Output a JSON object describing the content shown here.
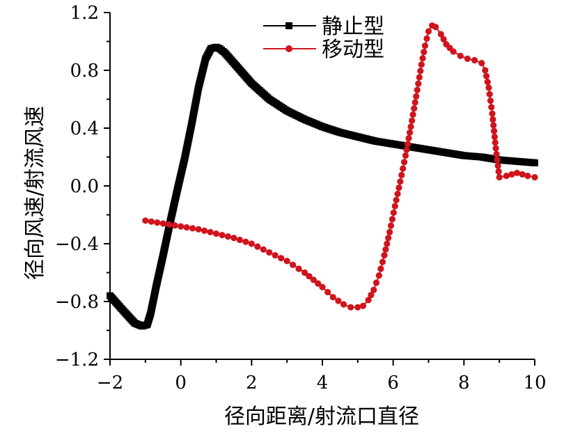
{
  "chart_data": {
    "type": "line",
    "xlabel": "径向距离/射流口直径",
    "ylabel": "径向风速/射流风速",
    "xlim": [
      -2,
      10
    ],
    "ylim": [
      -1.2,
      1.2
    ],
    "xticks": [
      -2,
      0,
      2,
      4,
      6,
      8,
      10
    ],
    "yticks": [
      -1.2,
      -0.8,
      -0.4,
      0.0,
      0.4,
      0.8,
      1.2
    ],
    "xtick_labels": [
      "−2",
      "0",
      "2",
      "4",
      "6",
      "8",
      "10"
    ],
    "ytick_labels": [
      "−1.2",
      "−0.8",
      "−0.4",
      "0.0",
      "0.4",
      "0.8",
      "1.2"
    ],
    "grid": false,
    "legend_position": "top-center",
    "series": [
      {
        "name": "静止型",
        "color": "#000000",
        "marker": "square",
        "x": [
          -2.0,
          -1.6,
          -1.3,
          -1.1,
          -0.95,
          -0.85,
          -0.7,
          -0.5,
          -0.3,
          -0.1,
          0.1,
          0.3,
          0.5,
          0.7,
          0.85,
          1.0,
          1.1,
          1.25,
          1.5,
          2.0,
          2.5,
          3.0,
          3.5,
          4.0,
          4.5,
          5.0,
          5.5,
          6.0,
          6.5,
          7.0,
          7.5,
          8.0,
          8.5,
          9.0,
          9.5,
          10.0
        ],
        "y": [
          -0.76,
          -0.87,
          -0.95,
          -0.97,
          -0.96,
          -0.88,
          -0.7,
          -0.48,
          -0.25,
          -0.03,
          0.18,
          0.42,
          0.68,
          0.88,
          0.95,
          0.96,
          0.95,
          0.92,
          0.85,
          0.71,
          0.6,
          0.52,
          0.46,
          0.41,
          0.37,
          0.34,
          0.31,
          0.29,
          0.27,
          0.25,
          0.23,
          0.21,
          0.2,
          0.18,
          0.17,
          0.16
        ]
      },
      {
        "name": "移动型",
        "color": "#d0141c",
        "marker": "circle",
        "x": [
          -1.0,
          -0.5,
          0.0,
          0.5,
          1.0,
          1.5,
          2.0,
          2.5,
          3.0,
          3.5,
          4.0,
          4.3,
          4.6,
          4.8,
          5.0,
          5.15,
          5.3,
          5.45,
          5.6,
          5.75,
          5.9,
          6.05,
          6.2,
          6.35,
          6.5,
          6.65,
          6.8,
          6.9,
          7.0,
          7.1,
          7.2,
          7.35,
          7.5,
          7.7,
          7.9,
          8.1,
          8.3,
          8.5,
          8.6,
          8.7,
          8.8,
          8.9,
          9.0,
          9.2,
          9.5,
          9.8,
          10.0
        ],
        "y": [
          -0.24,
          -0.26,
          -0.28,
          -0.3,
          -0.33,
          -0.36,
          -0.4,
          -0.46,
          -0.52,
          -0.6,
          -0.7,
          -0.77,
          -0.82,
          -0.84,
          -0.84,
          -0.83,
          -0.79,
          -0.72,
          -0.62,
          -0.48,
          -0.32,
          -0.14,
          0.03,
          0.21,
          0.41,
          0.62,
          0.84,
          0.97,
          1.07,
          1.11,
          1.1,
          1.05,
          0.98,
          0.93,
          0.9,
          0.88,
          0.87,
          0.85,
          0.8,
          0.68,
          0.5,
          0.26,
          0.06,
          0.07,
          0.09,
          0.07,
          0.06
        ]
      }
    ]
  }
}
